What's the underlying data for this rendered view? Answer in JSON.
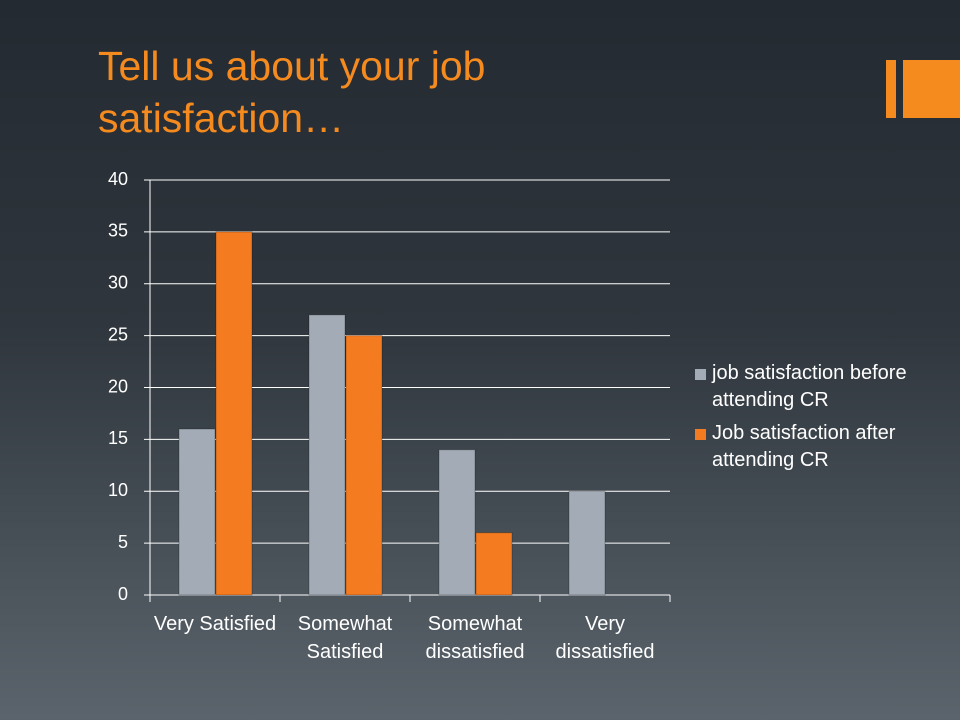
{
  "chart_data": {
    "type": "bar",
    "title": "Tell us about your job satisfaction…",
    "categories": [
      "Very Satisfied",
      "Somewhat Satisfied",
      "Somewhat dissatisfied",
      "Very dissatisfied"
    ],
    "series": [
      {
        "name": "job satisfaction before attending CR",
        "color": "#a3abb6",
        "values": [
          16,
          27,
          14,
          10
        ]
      },
      {
        "name": "Job satisfaction after attending CR",
        "color": "#f47b20",
        "values": [
          35,
          25,
          6,
          0
        ]
      }
    ],
    "ylim": [
      0,
      40
    ],
    "yticks": [
      0,
      5,
      10,
      15,
      20,
      25,
      30,
      35,
      40
    ],
    "grid": true,
    "legend": "right"
  }
}
